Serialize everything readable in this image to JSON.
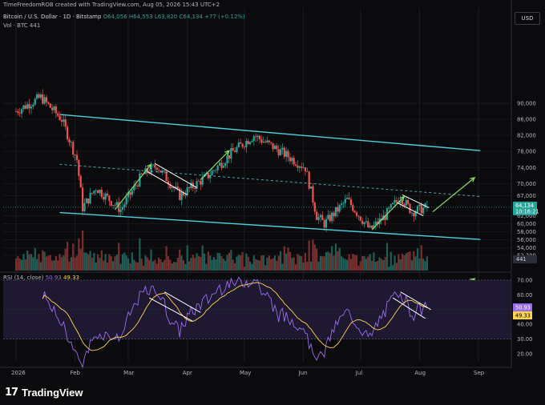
{
  "header": {
    "attribution": "TimeFreedomROB created with TradingView.com, Aug 05, 2026 15:43 UTC+2",
    "currency_button": "USD"
  },
  "legend": {
    "symbol": "Bitcoin / U.S. Dollar · 1D · Bitstamp",
    "ohlc_values": "O64,056 H64,553 L63,820 C64,134 +77 (+0.12%)",
    "volume": "Vol · BTC 441",
    "rsi": "RSI (14, close)",
    "rsi_value": "50.93",
    "rsi_ma_value": "49.33"
  },
  "brand": {
    "logo_text": "17",
    "name": "TradingView"
  },
  "colors": {
    "up": "#26a69a",
    "down": "#ef5350",
    "channel": "#4dd0e1",
    "arrow": "#8bdc6b",
    "rsi": "#9c6cf2",
    "rsi_ma": "#ffd54f",
    "rsi_band": "#1e1830",
    "price_tag": "#26a69a"
  },
  "chart_data": [
    {
      "type": "candlestick",
      "title": "Bitcoin / U.S. Dollar · 1D · Bitstamp",
      "x_ticks": [
        "2026",
        "Feb",
        "Mar",
        "Apr",
        "May",
        "Jun",
        "Jul",
        "Aug",
        "Sep"
      ],
      "y_ticks": [
        90000,
        86000,
        82000,
        78000,
        74000,
        70000,
        67000,
        62000,
        60000,
        58000,
        56000,
        54000,
        52200
      ],
      "y_range": [
        51000,
        92000
      ],
      "last_price": "64,134",
      "countdown": "10:16:21",
      "price_level_tag": "62,000",
      "volume_last": "441",
      "approx_path": [
        {
          "date": "2026-01-01",
          "price": 88000
        },
        {
          "date": "2026-01-14",
          "price": 91500
        },
        {
          "date": "2026-01-25",
          "price": 86000
        },
        {
          "date": "2026-02-02",
          "price": 76000
        },
        {
          "date": "2026-02-05",
          "price": 64000
        },
        {
          "date": "2026-02-12",
          "price": 69000
        },
        {
          "date": "2026-02-25",
          "price": 63500
        },
        {
          "date": "2026-03-08",
          "price": 72000
        },
        {
          "date": "2026-03-16",
          "price": 74500
        },
        {
          "date": "2026-03-28",
          "price": 67000
        },
        {
          "date": "2026-04-12",
          "price": 72000
        },
        {
          "date": "2026-04-25",
          "price": 78000
        },
        {
          "date": "2026-05-06",
          "price": 82000
        },
        {
          "date": "2026-05-20",
          "price": 78000
        },
        {
          "date": "2026-06-02",
          "price": 74000
        },
        {
          "date": "2026-06-08",
          "price": 62000
        },
        {
          "date": "2026-06-12",
          "price": 60000
        },
        {
          "date": "2026-06-24",
          "price": 66000
        },
        {
          "date": "2026-07-06",
          "price": 58500
        },
        {
          "date": "2026-07-14",
          "price": 62000
        },
        {
          "date": "2026-07-22",
          "price": 66800
        },
        {
          "date": "2026-07-28",
          "price": 63000
        },
        {
          "date": "2026-08-05",
          "price": 64134
        }
      ],
      "channel_lines": [
        {
          "from": {
            "date": "2026-01-24",
            "price": 87200
          },
          "to": {
            "date": "2026-09-02",
            "price": 78200
          }
        },
        {
          "from": {
            "date": "2026-01-24",
            "price": 62800
          },
          "to": {
            "date": "2026-09-02",
            "price": 56100
          }
        }
      ],
      "mid_line": {
        "from": {
          "date": "2026-01-24",
          "price": 74800
        },
        "to": {
          "date": "2026-09-02",
          "price": 66800
        }
      },
      "projection_arrow": {
        "from": {
          "date": "2026-08-08",
          "price": 63000
        },
        "to": {
          "date": "2026-08-30",
          "price": 71500
        }
      }
    },
    {
      "type": "line",
      "title": "RSI (14, close)",
      "y_ticks": [
        70,
        60,
        50,
        40,
        30,
        20
      ],
      "bands": [
        30,
        70
      ],
      "series": [
        {
          "name": "RSI",
          "last": 50.93
        },
        {
          "name": "RSI MA",
          "last": 49.33
        }
      ]
    }
  ]
}
